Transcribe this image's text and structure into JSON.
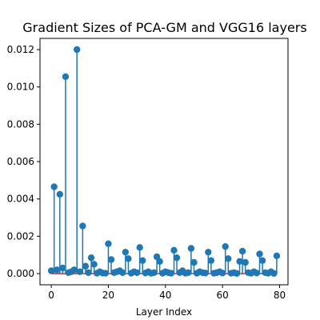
{
  "chart_data": {
    "type": "stem",
    "title": "Gradient Sizes of PCA-GM and VGG16 layers",
    "xlabel": "Layer Index",
    "ylabel": "",
    "xlim": [
      -3.95,
      82.95
    ],
    "ylim": [
      -0.0006,
      0.0126
    ],
    "xticks": [
      0,
      20,
      40,
      60,
      80
    ],
    "yticks": [
      0.0,
      0.002,
      0.004,
      0.006,
      0.008,
      0.01,
      0.012
    ],
    "ytick_labels": [
      "0.000",
      "0.002",
      "0.004",
      "0.006",
      "0.008",
      "0.010",
      "0.012"
    ],
    "grid": false,
    "baseline": 0,
    "colors": {
      "stem": "#1f77b4",
      "marker": "#1f77b4",
      "baseline": "#d62728"
    },
    "x": [
      0,
      1,
      2,
      3,
      4,
      5,
      6,
      7,
      8,
      9,
      10,
      11,
      12,
      13,
      14,
      15,
      16,
      17,
      18,
      19,
      20,
      21,
      22,
      23,
      24,
      25,
      26,
      27,
      28,
      29,
      30,
      31,
      32,
      33,
      34,
      35,
      36,
      37,
      38,
      39,
      40,
      41,
      42,
      43,
      44,
      45,
      46,
      47,
      48,
      49,
      50,
      51,
      52,
      53,
      54,
      55,
      56,
      57,
      58,
      59,
      60,
      61,
      62,
      63,
      64,
      65,
      66,
      67,
      68,
      69,
      70,
      71,
      72,
      73,
      74,
      75,
      76,
      77,
      78,
      79
    ],
    "y": [
      0.00015,
      0.00465,
      0.0002,
      0.00425,
      0.0003,
      0.01055,
      5e-05,
      0.0001,
      0.0002,
      0.012,
      0.0001,
      0.00255,
      0.0004,
      5e-05,
      0.00085,
      0.0005,
      2e-05,
      0.0001,
      3e-05,
      2e-05,
      0.0016,
      0.00075,
      5e-05,
      0.0001,
      0.00015,
      5e-05,
      0.00115,
      0.0008,
      2e-05,
      0.0001,
      5e-05,
      0.0014,
      0.0007,
      3e-05,
      0.0001,
      2e-05,
      5e-05,
      0.0009,
      0.00065,
      2e-05,
      0.0001,
      5e-05,
      2e-05,
      0.00125,
      0.00085,
      5e-05,
      0.00015,
      2e-05,
      5e-05,
      0.00135,
      0.0006,
      2e-05,
      0.0001,
      5e-05,
      3e-05,
      0.00115,
      0.0007,
      2e-05,
      5e-05,
      0.0001,
      3e-05,
      0.00145,
      0.0008,
      2e-05,
      5e-05,
      1e-05,
      0.00065,
      0.0012,
      0.0006,
      5e-05,
      2e-05,
      0.0001,
      3e-05,
      0.00105,
      0.0007,
      5e-05,
      2e-05,
      0.0001,
      1e-05,
      0.00095
    ]
  }
}
